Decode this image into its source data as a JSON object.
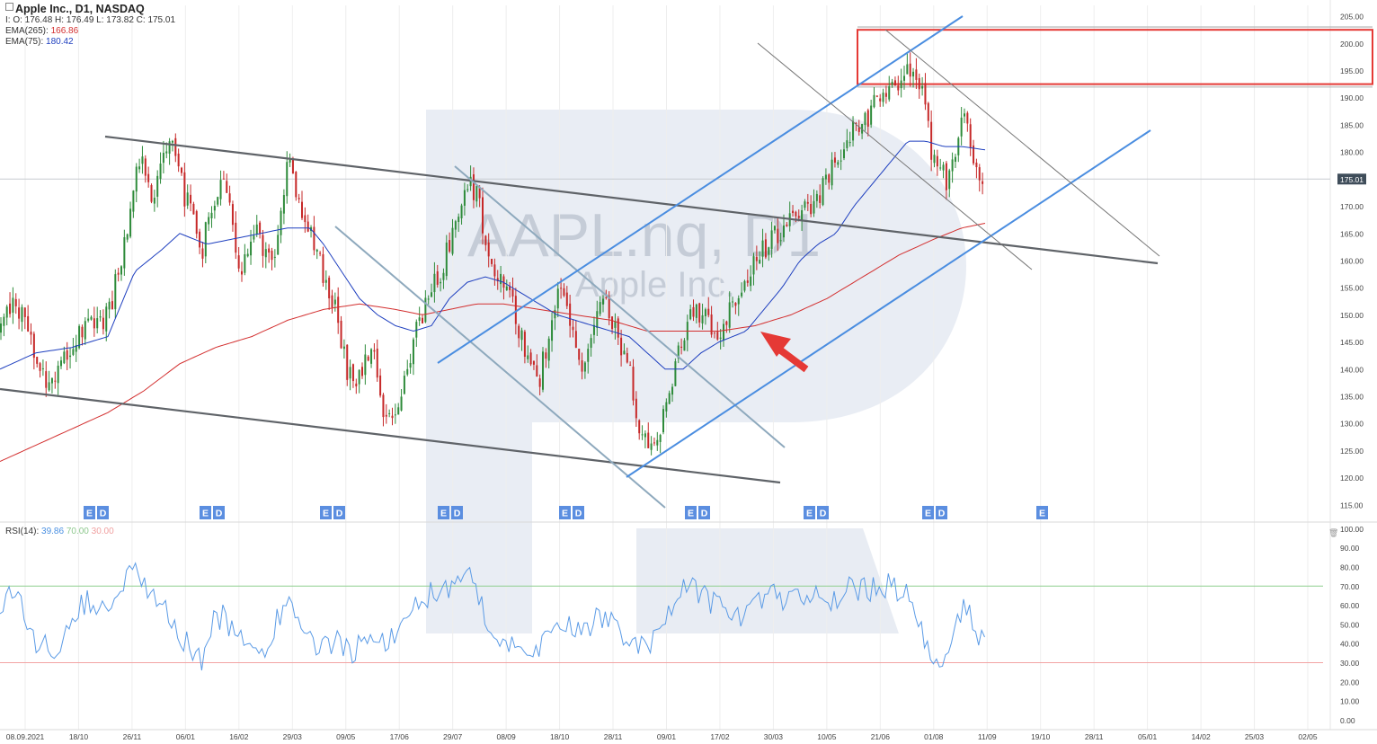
{
  "legend": {
    "title": "Apple Inc.,  D1,  NASDAQ",
    "ohlc": "I: O: 176.48  H: 176.49  L: 173.82  C: 175.01",
    "ema265_label": "EMA(265):",
    "ema265_value": "166.86",
    "ema75_label": "EMA(75):",
    "ema75_value": "180.42"
  },
  "rsi_legend": {
    "label": "RSI(14):",
    "value": "39.86",
    "upper": "70.00",
    "lower": "30.00"
  },
  "watermark": {
    "ticker": "AAPL.nq, D1",
    "name": "Apple Inc."
  },
  "colors": {
    "candle_up": "#2e8b3a",
    "candle_down": "#c62828",
    "ema265": "#d32f2f",
    "ema75": "#1e3fbf",
    "rsi": "#5b9be6",
    "channel_gray": "#5f6368",
    "channel_light": "#8ea9bd",
    "channel_blue": "#4a8de0",
    "resistance_box": "#e53935",
    "arrow": "#e53935",
    "price_tag": "#3f4d5a",
    "event_tag": "#5b8ee0"
  },
  "chart_data": [
    {
      "type": "candlestick",
      "title": "Apple Inc., D1, NASDAQ",
      "ylim": [
        112,
        207
      ],
      "y_ticks": [
        "205.00",
        "200.00",
        "195.00",
        "190.00",
        "185.00",
        "180.00",
        "175.00",
        "170.00",
        "165.00",
        "160.00",
        "155.00",
        "150.00",
        "145.00",
        "140.00",
        "135.00",
        "130.00",
        "125.00",
        "120.00",
        "115.00"
      ],
      "last_price": "175.01",
      "x_ticks": [
        "08.09.2021",
        "18/10",
        "26/11",
        "06/01",
        "16/02",
        "29/03",
        "09/05",
        "17/06",
        "29/07",
        "08/09",
        "18/10",
        "28/11",
        "09/01",
        "17/02",
        "30/03",
        "10/05",
        "21/06",
        "01/08",
        "11/09",
        "19/10",
        "28/11",
        "05/01",
        "14/02",
        "25/03",
        "02/05"
      ],
      "price_anchors": [
        [
          0,
          147
        ],
        [
          15,
          153
        ],
        [
          30,
          148
        ],
        [
          40,
          140
        ],
        [
          55,
          138
        ],
        [
          70,
          142
        ],
        [
          85,
          146
        ],
        [
          100,
          150
        ],
        [
          115,
          148
        ],
        [
          125,
          153
        ],
        [
          140,
          165
        ],
        [
          150,
          176
        ],
        [
          160,
          178
        ],
        [
          170,
          172
        ],
        [
          180,
          180
        ],
        [
          195,
          180
        ],
        [
          205,
          172
        ],
        [
          215,
          168
        ],
        [
          225,
          162
        ],
        [
          235,
          170
        ],
        [
          245,
          175
        ],
        [
          255,
          172
        ],
        [
          265,
          157
        ],
        [
          275,
          160
        ],
        [
          285,
          166
        ],
        [
          295,
          160
        ],
        [
          305,
          162
        ],
        [
          315,
          170
        ],
        [
          320,
          178
        ],
        [
          327,
          175
        ],
        [
          335,
          170
        ],
        [
          345,
          165
        ],
        [
          355,
          160
        ],
        [
          365,
          155
        ],
        [
          375,
          150
        ],
        [
          385,
          140
        ],
        [
          395,
          138
        ],
        [
          405,
          140
        ],
        [
          415,
          146
        ],
        [
          425,
          133
        ],
        [
          435,
          130
        ],
        [
          445,
          135
        ],
        [
          455,
          142
        ],
        [
          465,
          148
        ],
        [
          480,
          155
        ],
        [
          490,
          158
        ],
        [
          500,
          163
        ],
        [
          510,
          168
        ],
        [
          520,
          175
        ],
        [
          530,
          172
        ],
        [
          540,
          165
        ],
        [
          550,
          157
        ],
        [
          560,
          156
        ],
        [
          570,
          152
        ],
        [
          580,
          146
        ],
        [
          590,
          140
        ],
        [
          600,
          138
        ],
        [
          610,
          146
        ],
        [
          620,
          155
        ],
        [
          630,
          152
        ],
        [
          640,
          145
        ],
        [
          650,
          140
        ],
        [
          660,
          148
        ],
        [
          670,
          152
        ],
        [
          680,
          150
        ],
        [
          690,
          145
        ],
        [
          700,
          140
        ],
        [
          710,
          130
        ],
        [
          720,
          127
        ],
        [
          730,
          126
        ],
        [
          740,
          132
        ],
        [
          750,
          140
        ],
        [
          760,
          145
        ],
        [
          770,
          152
        ],
        [
          780,
          150
        ],
        [
          790,
          148
        ],
        [
          800,
          147
        ],
        [
          810,
          150
        ],
        [
          820,
          152
        ],
        [
          830,
          156
        ],
        [
          840,
          160
        ],
        [
          850,
          162
        ],
        [
          860,
          165
        ],
        [
          870,
          165
        ],
        [
          880,
          167
        ],
        [
          890,
          169
        ],
        [
          900,
          170
        ],
        [
          910,
          172
        ],
        [
          920,
          175
        ],
        [
          930,
          178
        ],
        [
          940,
          182
        ],
        [
          950,
          185
        ],
        [
          960,
          185
        ],
        [
          970,
          188
        ],
        [
          980,
          190
        ],
        [
          990,
          193
        ],
        [
          1000,
          193
        ],
        [
          1010,
          196
        ],
        [
          1020,
          194
        ],
        [
          1030,
          190
        ],
        [
          1035,
          180
        ],
        [
          1045,
          178
        ],
        [
          1055,
          174
        ],
        [
          1065,
          180
        ],
        [
          1075,
          190
        ],
        [
          1080,
          180
        ],
        [
          1090,
          176
        ],
        [
          1096,
          175
        ]
      ],
      "ema75_anchors": [
        [
          0,
          140
        ],
        [
          40,
          143
        ],
        [
          80,
          144
        ],
        [
          120,
          146
        ],
        [
          150,
          158
        ],
        [
          180,
          162
        ],
        [
          200,
          165
        ],
        [
          230,
          163
        ],
        [
          260,
          164
        ],
        [
          290,
          165
        ],
        [
          320,
          166
        ],
        [
          345,
          166
        ],
        [
          360,
          163
        ],
        [
          380,
          158
        ],
        [
          400,
          153
        ],
        [
          420,
          150
        ],
        [
          440,
          148
        ],
        [
          460,
          147
        ],
        [
          480,
          148
        ],
        [
          500,
          153
        ],
        [
          520,
          156
        ],
        [
          540,
          157
        ],
        [
          560,
          156
        ],
        [
          580,
          154
        ],
        [
          600,
          152
        ],
        [
          620,
          150
        ],
        [
          640,
          149
        ],
        [
          660,
          148
        ],
        [
          680,
          147
        ],
        [
          700,
          146
        ],
        [
          720,
          143
        ],
        [
          740,
          140
        ],
        [
          760,
          140
        ],
        [
          780,
          143
        ],
        [
          800,
          145
        ],
        [
          830,
          147
        ],
        [
          850,
          151
        ],
        [
          870,
          155
        ],
        [
          890,
          160
        ],
        [
          910,
          163
        ],
        [
          930,
          165
        ],
        [
          950,
          170
        ],
        [
          970,
          174
        ],
        [
          990,
          178
        ],
        [
          1010,
          182
        ],
        [
          1030,
          182
        ],
        [
          1050,
          181
        ],
        [
          1070,
          181
        ],
        [
          1096,
          180.4
        ]
      ],
      "ema265_anchors": [
        [
          0,
          123
        ],
        [
          40,
          126
        ],
        [
          80,
          129
        ],
        [
          120,
          132
        ],
        [
          160,
          136
        ],
        [
          200,
          141
        ],
        [
          240,
          144
        ],
        [
          280,
          146
        ],
        [
          320,
          149
        ],
        [
          360,
          151
        ],
        [
          400,
          152
        ],
        [
          440,
          151
        ],
        [
          470,
          150
        ],
        [
          500,
          151
        ],
        [
          530,
          152
        ],
        [
          560,
          152
        ],
        [
          600,
          151
        ],
        [
          640,
          150
        ],
        [
          680,
          149
        ],
        [
          720,
          147
        ],
        [
          760,
          147
        ],
        [
          800,
          147
        ],
        [
          840,
          148
        ],
        [
          880,
          150
        ],
        [
          920,
          153
        ],
        [
          960,
          157
        ],
        [
          1000,
          161
        ],
        [
          1040,
          164
        ],
        [
          1070,
          166
        ],
        [
          1096,
          166.86
        ]
      ],
      "annotations": [
        "resistance zone 192.5 – 202.5",
        "descending channel",
        "ascending channel",
        "arrow at 147.5"
      ]
    },
    {
      "type": "line",
      "title": "RSI(14)",
      "ylim": [
        -5,
        103
      ],
      "y_ticks": [
        "100.00",
        "90.00",
        "80.00",
        "70.00",
        "60.00",
        "50.00",
        "40.00",
        "30.00",
        "20.00",
        "10.00",
        "0.00"
      ],
      "levels": [
        70,
        30
      ],
      "anchors": [
        [
          0,
          60
        ],
        [
          10,
          68
        ],
        [
          20,
          65
        ],
        [
          30,
          45
        ],
        [
          45,
          40
        ],
        [
          60,
          35
        ],
        [
          75,
          50
        ],
        [
          90,
          60
        ],
        [
          100,
          62
        ],
        [
          110,
          55
        ],
        [
          125,
          60
        ],
        [
          140,
          75
        ],
        [
          155,
          78
        ],
        [
          165,
          65
        ],
        [
          180,
          60
        ],
        [
          195,
          45
        ],
        [
          210,
          40
        ],
        [
          225,
          32
        ],
        [
          235,
          50
        ],
        [
          250,
          55
        ],
        [
          265,
          40
        ],
        [
          280,
          45
        ],
        [
          295,
          35
        ],
        [
          310,
          55
        ],
        [
          320,
          62
        ],
        [
          330,
          50
        ],
        [
          345,
          42
        ],
        [
          360,
          38
        ],
        [
          375,
          40
        ],
        [
          390,
          35
        ],
        [
          405,
          42
        ],
        [
          420,
          40
        ],
        [
          435,
          45
        ],
        [
          450,
          50
        ],
        [
          460,
          60
        ],
        [
          475,
          65
        ],
        [
          490,
          68
        ],
        [
          505,
          72
        ],
        [
          520,
          75
        ],
        [
          530,
          70
        ],
        [
          545,
          45
        ],
        [
          560,
          40
        ],
        [
          575,
          38
        ],
        [
          590,
          35
        ],
        [
          605,
          42
        ],
        [
          620,
          55
        ],
        [
          635,
          50
        ],
        [
          650,
          45
        ],
        [
          665,
          55
        ],
        [
          680,
          50
        ],
        [
          695,
          45
        ],
        [
          710,
          38
        ],
        [
          720,
          35
        ],
        [
          735,
          50
        ],
        [
          750,
          60
        ],
        [
          765,
          70
        ],
        [
          780,
          65
        ],
        [
          795,
          60
        ],
        [
          810,
          58
        ],
        [
          825,
          55
        ],
        [
          840,
          60
        ],
        [
          855,
          65
        ],
        [
          870,
          63
        ],
        [
          885,
          65
        ],
        [
          900,
          62
        ],
        [
          915,
          65
        ],
        [
          930,
          60
        ],
        [
          945,
          68
        ],
        [
          960,
          70
        ],
        [
          975,
          68
        ],
        [
          990,
          72
        ],
        [
          1000,
          68
        ],
        [
          1010,
          65
        ],
        [
          1020,
          58
        ],
        [
          1030,
          40
        ],
        [
          1040,
          32
        ],
        [
          1050,
          30
        ],
        [
          1060,
          45
        ],
        [
          1075,
          62
        ],
        [
          1085,
          45
        ],
        [
          1096,
          40
        ]
      ]
    }
  ],
  "event_markers": [
    {
      "labels": [
        "E",
        "D"
      ],
      "x": 107
    },
    {
      "labels": [
        "E",
        "D"
      ],
      "x": 236
    },
    {
      "labels": [
        "E",
        "D"
      ],
      "x": 370
    },
    {
      "labels": [
        "E",
        "D"
      ],
      "x": 501
    },
    {
      "labels": [
        "E",
        "D"
      ],
      "x": 636
    },
    {
      "labels": [
        "E",
        "D"
      ],
      "x": 776
    },
    {
      "labels": [
        "E",
        "D"
      ],
      "x": 908
    },
    {
      "labels": [
        "E",
        "D"
      ],
      "x": 1040
    },
    {
      "labels": [
        "E"
      ],
      "x": 1160
    }
  ]
}
